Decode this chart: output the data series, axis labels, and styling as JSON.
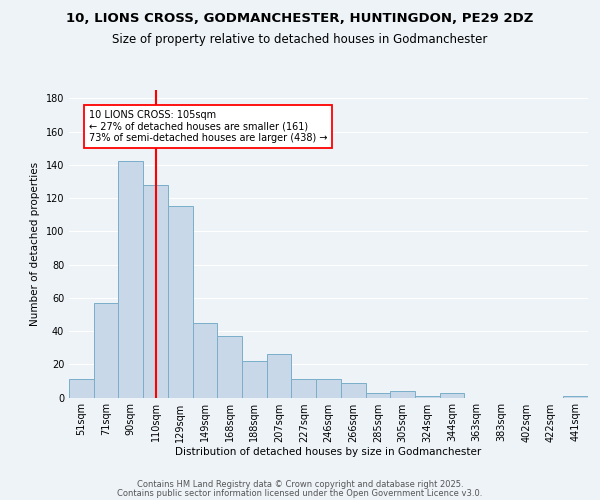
{
  "title1": "10, LIONS CROSS, GODMANCHESTER, HUNTINGDON, PE29 2DZ",
  "title2": "Size of property relative to detached houses in Godmanchester",
  "xlabel": "Distribution of detached houses by size in Godmanchester",
  "ylabel": "Number of detached properties",
  "bar_labels": [
    "51sqm",
    "71sqm",
    "90sqm",
    "110sqm",
    "129sqm",
    "149sqm",
    "168sqm",
    "188sqm",
    "207sqm",
    "227sqm",
    "246sqm",
    "266sqm",
    "285sqm",
    "305sqm",
    "324sqm",
    "344sqm",
    "363sqm",
    "383sqm",
    "402sqm",
    "422sqm",
    "441sqm"
  ],
  "bar_values": [
    11,
    57,
    142,
    128,
    115,
    45,
    37,
    22,
    26,
    11,
    11,
    9,
    3,
    4,
    1,
    3,
    0,
    0,
    0,
    0,
    1
  ],
  "bar_color": "#c8d8e8",
  "bar_edgecolor": "#7aaec8",
  "ylim": [
    0,
    185
  ],
  "yticks": [
    0,
    20,
    40,
    60,
    80,
    100,
    120,
    140,
    160,
    180
  ],
  "red_line_x": 3.0,
  "annotation_line1": "10 LIONS CROSS: 105sqm",
  "annotation_line2": "← 27% of detached houses are smaller (161)",
  "annotation_line3": "73% of semi-detached houses are larger (438) →",
  "footer1": "Contains HM Land Registry data © Crown copyright and database right 2025.",
  "footer2": "Contains public sector information licensed under the Open Government Licence v3.0.",
  "bg_color": "#eef3f8",
  "grid_color": "#ffffff",
  "title1_fontsize": 9.5,
  "title2_fontsize": 8.5,
  "axis_fontsize": 7.5,
  "tick_fontsize": 7,
  "footer_fontsize": 6
}
